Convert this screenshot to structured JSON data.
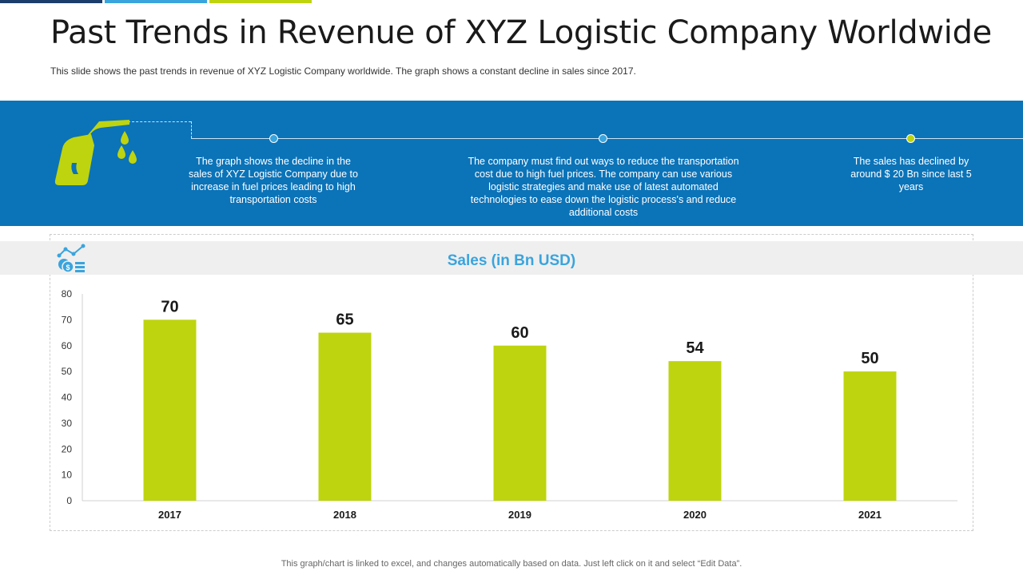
{
  "colors": {
    "accent_blue": "#0b73b8",
    "bar_green": "#bed40f",
    "title_blue": "#3aa4dd",
    "top_dark": "#1b3d6b",
    "top_light": "#3aa4dd"
  },
  "header": {
    "title": "Past Trends in Revenue of XYZ Logistic Company Worldwide",
    "subtitle": "This slide shows the past trends in revenue  of XYZ  Logistic Company worldwide.  The graph  shows a constant decline in sales since 2017."
  },
  "band": {
    "icon": "fuel-pump-icon",
    "notes": [
      "The graph shows the decline in the sales of XYZ  Logistic Company due to increase in fuel prices leading to high transportation costs",
      "The company must find out ways to reduce the transportation  cost due to high fuel prices. The  company can use various  logistic strategies and make use of latest automated technologies to ease down the logistic process's and reduce additional costs",
      "The sales has declined by around $ 20 Bn since last 5 years"
    ]
  },
  "chart_data": {
    "type": "bar",
    "title": "Sales (in Bn USD)",
    "categories": [
      "2017",
      "2018",
      "2019",
      "2020",
      "2021"
    ],
    "values": [
      70,
      65,
      60,
      54,
      50
    ],
    "data_labels": [
      "70",
      "65",
      "60",
      "54",
      "50"
    ],
    "yticks": [
      "0",
      "10",
      "20",
      "30",
      "40",
      "50",
      "60",
      "70",
      "80"
    ],
    "ylim": [
      0,
      80
    ],
    "xlabel": "",
    "ylabel": "",
    "grid": false,
    "legend": "none"
  },
  "footer": {
    "text": "This graph/chart is linked to excel,  and changes automatically based on data. Just left click on it and select “Edit Data”."
  }
}
